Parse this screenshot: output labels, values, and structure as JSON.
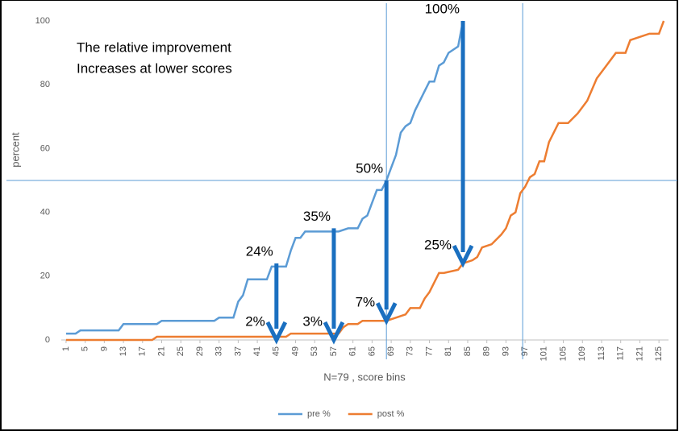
{
  "chart_data": {
    "type": "line",
    "annotation": [
      "The relative improvement",
      "Increases at lower scores"
    ],
    "ylabel": "percent",
    "xlabel": "N=79 , score bins",
    "xlim": [
      0,
      127
    ],
    "ylim": [
      0,
      100
    ],
    "xticks": [
      1,
      5,
      9,
      13,
      17,
      21,
      25,
      29,
      33,
      37,
      41,
      45,
      49,
      53,
      57,
      61,
      65,
      69,
      73,
      77,
      81,
      85,
      89,
      93,
      97,
      101,
      105,
      109,
      113,
      117,
      121,
      125
    ],
    "yticks": [
      0,
      20,
      40,
      60,
      80,
      100
    ],
    "reference_lines": {
      "y": [
        50
      ],
      "x": [
        68,
        96.5
      ],
      "color": "#5b9bd5"
    },
    "series": [
      {
        "name": "pre %",
        "color": "#5b9bd5",
        "x": [
          1,
          3,
          4,
          12,
          13,
          20,
          21,
          32,
          33,
          36,
          37,
          38,
          39,
          43,
          44,
          47,
          48,
          49,
          50,
          51,
          58,
          60,
          62,
          63,
          64,
          65,
          66,
          67,
          68,
          70,
          71,
          72,
          73,
          74,
          76,
          77,
          78,
          79,
          80,
          81,
          82,
          83,
          84
        ],
        "values": [
          2,
          2,
          3,
          3,
          5,
          5,
          6,
          6,
          7,
          7,
          12,
          14,
          19,
          19,
          23,
          23,
          28,
          32,
          32,
          34,
          34,
          35,
          35,
          38,
          39,
          43,
          47,
          47,
          50,
          58,
          65,
          67,
          68,
          72,
          78,
          81,
          81,
          86,
          87,
          90,
          91,
          92,
          100
        ]
      },
      {
        "name": "post %",
        "color": "#ed7d31",
        "x": [
          1,
          19,
          20,
          47,
          48,
          58,
          59,
          60,
          62,
          63,
          67,
          68,
          70,
          72,
          73,
          75,
          76,
          77,
          78,
          79,
          80,
          83,
          84,
          86,
          87,
          88,
          90,
          92,
          93,
          94,
          95,
          96,
          97,
          98,
          99,
          100,
          101,
          102,
          103,
          104,
          106,
          108,
          110,
          112,
          114,
          116,
          118,
          119,
          121,
          123,
          125,
          126
        ],
        "values": [
          0,
          0,
          1,
          1,
          2,
          2,
          4,
          5,
          5,
          6,
          6,
          6,
          7,
          8,
          10,
          10,
          13,
          15,
          18,
          21,
          21,
          22,
          24,
          25,
          26,
          29,
          30,
          33,
          35,
          39,
          40,
          46,
          48,
          51,
          52,
          56,
          56,
          62,
          65,
          68,
          68,
          71,
          75,
          82,
          86,
          90,
          90,
          94,
          95,
          96,
          96,
          100
        ]
      }
    ],
    "arrows": {
      "color": "#1a6fc0",
      "items": [
        {
          "x": 45,
          "from": 24,
          "to": 0,
          "top_label": "24%",
          "bottom_label": "2%"
        },
        {
          "x": 57,
          "from": 35,
          "to": 0,
          "top_label": "35%",
          "bottom_label": "3%"
        },
        {
          "x": 68,
          "from": 50,
          "to": 6,
          "top_label": "50%",
          "bottom_label": "7%"
        },
        {
          "x": 84,
          "from": 100,
          "to": 24,
          "top_label": "100%",
          "bottom_label": "25%"
        }
      ]
    },
    "legend": "bottom"
  }
}
